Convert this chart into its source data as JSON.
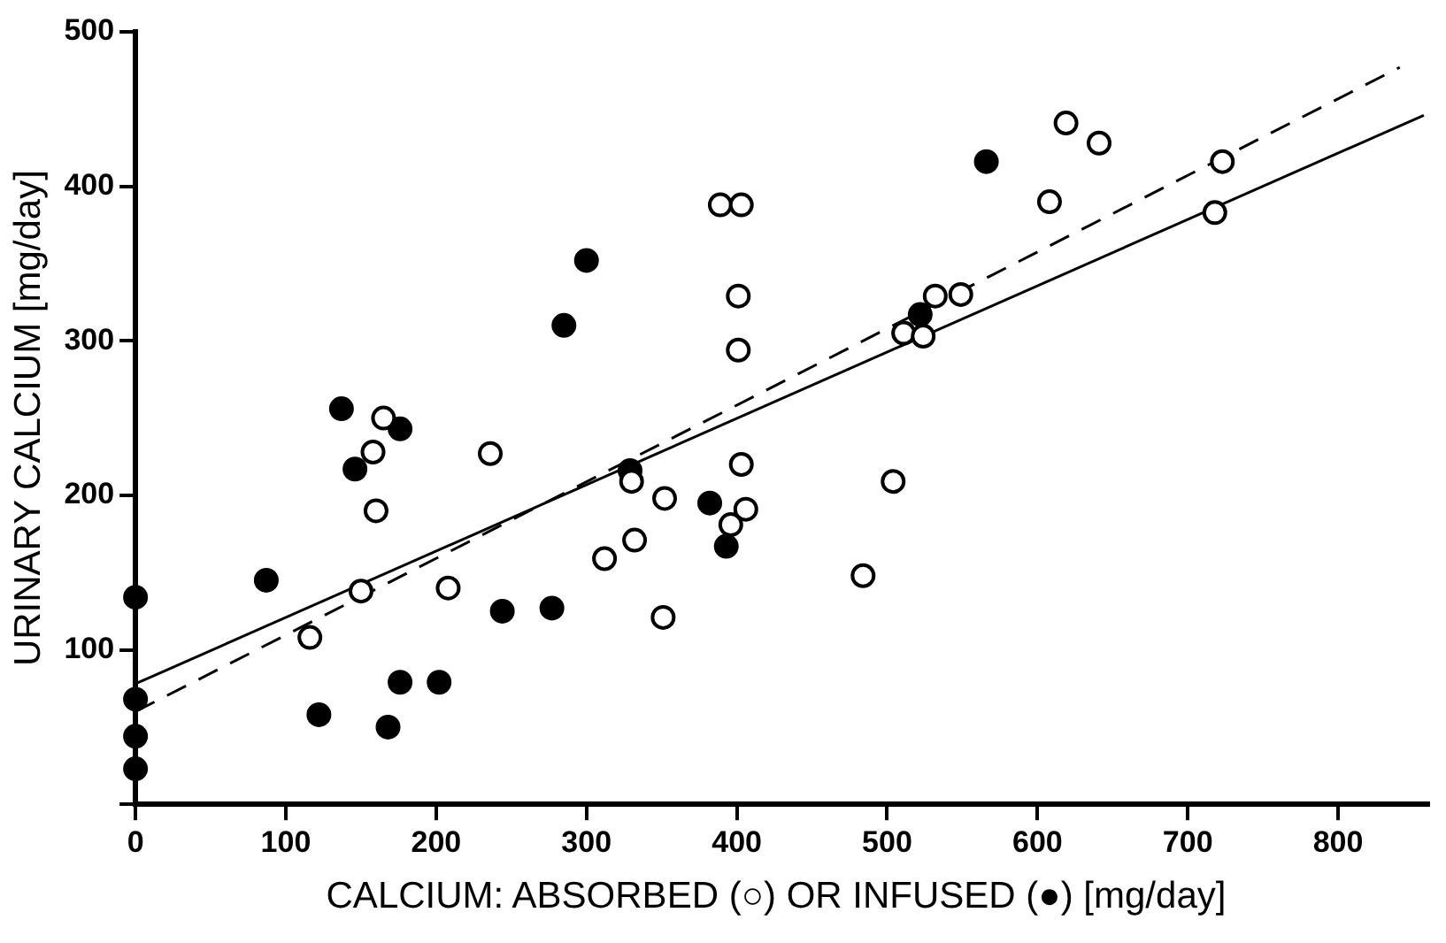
{
  "chart_data": {
    "type": "scatter",
    "xlabel": "CALCIUM: ABSORBED (○) OR INFUSED (●) [mg/day]",
    "ylabel": "URINARY CALCIUM [mg/day]",
    "xlim": [
      0,
      860
    ],
    "ylim": [
      0,
      500
    ],
    "xticks": [
      0,
      100,
      200,
      300,
      400,
      500,
      600,
      700,
      800
    ],
    "yticks": [
      {
        "value": 0,
        "label": null
      },
      100,
      200,
      300,
      400,
      500
    ],
    "grid": false,
    "legend": false,
    "marker": "circle",
    "series": [
      {
        "color": "#ffffff",
        "x": [
          116,
          150,
          160,
          158,
          165,
          236,
          208,
          312,
          332,
          330,
          352,
          351,
          396,
          406,
          403,
          389,
          403,
          401,
          401,
          608,
          619,
          641,
          723,
          718,
          532,
          549,
          511,
          524,
          504,
          484
        ],
        "values": [
          108,
          138,
          190,
          228,
          250,
          227,
          140,
          159,
          171,
          209,
          198,
          121,
          181,
          191,
          220,
          388,
          388,
          329,
          294,
          390,
          441,
          428,
          416,
          383,
          329,
          330,
          305,
          303,
          209,
          148
        ]
      },
      {
        "color": "#000000",
        "x": [
          0,
          0,
          0,
          0,
          87,
          122,
          168,
          176,
          202,
          146,
          137,
          176,
          244,
          277,
          382,
          393,
          285,
          300,
          566,
          522,
          329
        ],
        "values": [
          134,
          68,
          44,
          23,
          145,
          58,
          50,
          79,
          79,
          217,
          256,
          243,
          125,
          127,
          195,
          167,
          310,
          352,
          416,
          317,
          216
        ]
      },
      {
        "type": "line",
        "color": "#000000",
        "marker": "none",
        "line_style": "solid",
        "x": [
          0,
          857
        ],
        "values": [
          78,
          446
        ]
      },
      {
        "type": "line",
        "color": "#000000",
        "marker": "none",
        "line_style": "dashed",
        "x": [
          0,
          841
        ],
        "values": [
          60,
          477
        ]
      }
    ]
  }
}
